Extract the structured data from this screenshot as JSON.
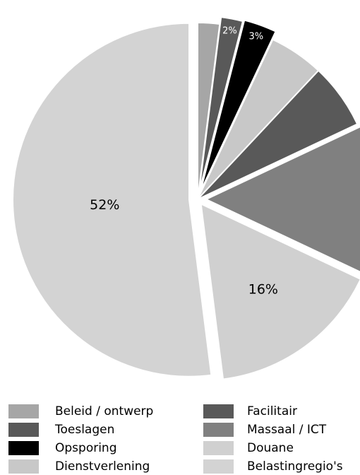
{
  "chart_data": {
    "type": "pie",
    "categories": [
      "Beleid / ontwerp",
      "Toeslagen",
      "Opsporing",
      "Dienstverlening",
      "Facilitair",
      "Massaal / ICT",
      "Douane",
      "Belastingregio's"
    ],
    "values": [
      2,
      2,
      3,
      5,
      6,
      14,
      16,
      52
    ],
    "value_labels": [
      null,
      "2%",
      "3%",
      null,
      null,
      null,
      "16%",
      "52%"
    ],
    "colors": [
      "#a6a6a6",
      "#595959",
      "#000000",
      "#c8c8c8",
      "#595959",
      "#808080",
      "#d0d0d0",
      "#d3d3d3"
    ]
  }
}
